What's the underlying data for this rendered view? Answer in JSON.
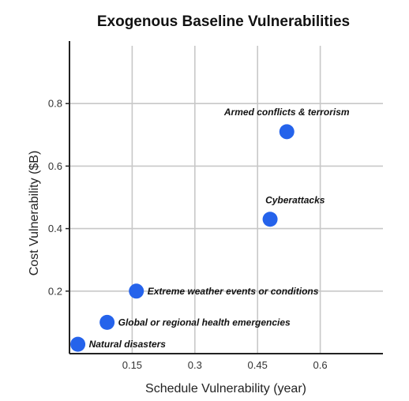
{
  "chart_data": {
    "type": "scatter",
    "title": "Exogenous Baseline Vulnerabilities",
    "xlabel": "Schedule Vulnerability (year)",
    "ylabel": "Cost Vulnerability ($B)",
    "xlim": [
      0.0,
      0.75
    ],
    "ylim": [
      0.0,
      1.0
    ],
    "xticks": [
      0.15,
      0.3,
      0.45,
      0.6
    ],
    "xtick_labels": [
      "0.15",
      "0.3",
      "0.45",
      "0.6"
    ],
    "yticks": [
      0.2,
      0.4,
      0.6,
      0.8
    ],
    "ytick_labels": [
      "0.2",
      "0.4",
      "0.6",
      "0.8"
    ],
    "grid": true,
    "point_color": "#2563eb",
    "points": [
      {
        "label": "Armed conflicts & terrorism",
        "x": 0.52,
        "y": 0.71
      },
      {
        "label": "Cyberattacks",
        "x": 0.48,
        "y": 0.43
      },
      {
        "label": "Extreme weather events or conditions",
        "x": 0.16,
        "y": 0.2
      },
      {
        "label": "Global or regional health emergencies",
        "x": 0.09,
        "y": 0.1
      },
      {
        "label": "Natural disasters",
        "x": 0.02,
        "y": 0.03
      }
    ]
  }
}
